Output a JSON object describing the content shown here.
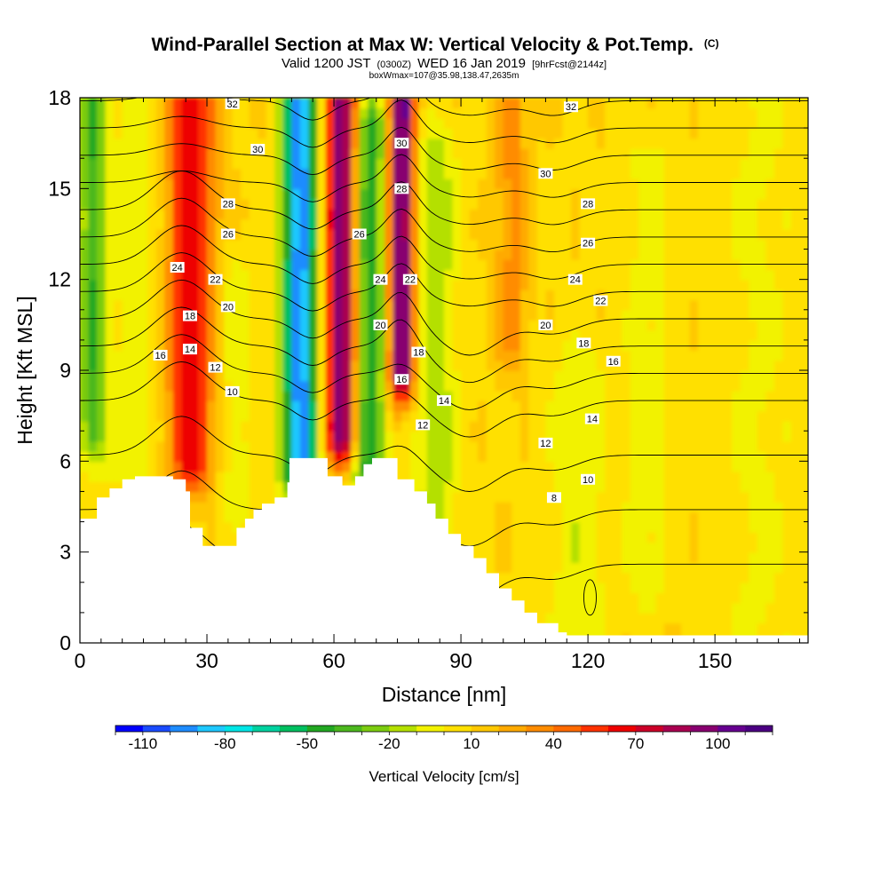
{
  "chart_data": {
    "type": "heatmap",
    "title": "Wind-Parallel Section at Max W: Vertical Velocity & Pot.Temp.",
    "title_suffix": "(C)",
    "subtitle_main": "Valid 1200 JST",
    "subtitle_utc": "(0300Z)",
    "subtitle_date": "WED 16 Jan 2019",
    "subtitle_fcst": "[9hrFcst@2144z]",
    "subtitle_box": "boxWmax=107@35.98,138.47,2635m",
    "xlabel": "Distance [nm]",
    "ylabel": "Height [Kft MSL]",
    "xlim": [
      0,
      172
    ],
    "ylim": [
      0,
      18
    ],
    "xticks": [
      0,
      30,
      60,
      90,
      120,
      150
    ],
    "yticks": [
      0,
      3,
      6,
      9,
      12,
      15,
      18
    ],
    "colorbar": {
      "title": "Vertical Velocity [cm/s]",
      "labels": [
        "-110",
        "-80",
        "-50",
        "-20",
        "10",
        "40",
        "70",
        "100"
      ],
      "label_values": [
        -110,
        -80,
        -50,
        -20,
        10,
        40,
        70,
        100
      ],
      "bounds": [
        -120,
        120
      ],
      "colors": [
        "#0000ff",
        "#1a4bff",
        "#1e8cff",
        "#1ec8ff",
        "#00e6e6",
        "#00d2a0",
        "#00c060",
        "#22a822",
        "#4cb81e",
        "#7ccc10",
        "#b4e000",
        "#f2f200",
        "#ffe000",
        "#ffc800",
        "#ffaa00",
        "#ff8c00",
        "#ff6a00",
        "#ff3200",
        "#ee0000",
        "#cc0028",
        "#aa0050",
        "#880070",
        "#660090",
        "#4b0082"
      ]
    },
    "w_features": [
      {
        "x": 3,
        "zmin": 7,
        "zmax": 18,
        "w": -45,
        "spread": 3
      },
      {
        "x": 26,
        "zmin": 6,
        "zmax": 18,
        "w": 60,
        "spread": 6
      },
      {
        "x": 14,
        "zmin": 6,
        "zmax": 18,
        "w": -15,
        "spread": 8
      },
      {
        "x": 36,
        "zmin": 5,
        "zmax": 12,
        "w": -15,
        "spread": 5
      },
      {
        "x": 52,
        "zmin": 6,
        "zmax": 18,
        "w": -105,
        "spread": 4
      },
      {
        "x": 62,
        "zmin": 7,
        "zmax": 18,
        "w": 95,
        "spread": 4
      },
      {
        "x": 68,
        "zmin": 6,
        "zmax": 17,
        "w": -60,
        "spread": 4
      },
      {
        "x": 76,
        "zmin": 9,
        "zmax": 18,
        "w": 100,
        "spread": 3
      },
      {
        "x": 84,
        "zmin": 3,
        "zmax": 16,
        "w": -25,
        "spread": 5
      },
      {
        "x": 102,
        "zmin": 10,
        "zmax": 18,
        "w": 25,
        "spread": 4
      },
      {
        "x": 118,
        "zmin": 0,
        "zmax": 9,
        "w": -15,
        "spread": 7
      },
      {
        "x": 134,
        "zmin": 2,
        "zmax": 16,
        "w": -12,
        "spread": 5
      },
      {
        "x": 160,
        "zmin": 0,
        "zmax": 18,
        "w": -10,
        "spread": 9
      }
    ],
    "potential_temperature_contours": [
      4,
      6,
      8,
      10,
      12,
      14,
      16,
      18,
      20,
      22,
      24,
      26,
      28,
      30,
      32
    ],
    "contour_labels": [
      {
        "x": 36,
        "z": 17.8,
        "text": "32"
      },
      {
        "x": 116,
        "z": 17.7,
        "text": "32"
      },
      {
        "x": 42,
        "z": 16.3,
        "text": "30"
      },
      {
        "x": 76,
        "z": 16.5,
        "text": "30"
      },
      {
        "x": 110,
        "z": 15.5,
        "text": "30"
      },
      {
        "x": 35,
        "z": 14.5,
        "text": "28"
      },
      {
        "x": 76,
        "z": 15.0,
        "text": "28"
      },
      {
        "x": 120,
        "z": 14.5,
        "text": "28"
      },
      {
        "x": 35,
        "z": 13.5,
        "text": "26"
      },
      {
        "x": 66,
        "z": 13.5,
        "text": "26"
      },
      {
        "x": 120,
        "z": 13.2,
        "text": "26"
      },
      {
        "x": 23,
        "z": 12.4,
        "text": "24"
      },
      {
        "x": 71,
        "z": 12.0,
        "text": "24"
      },
      {
        "x": 117,
        "z": 12.0,
        "text": "24"
      },
      {
        "x": 32,
        "z": 12.0,
        "text": "22"
      },
      {
        "x": 78,
        "z": 12.0,
        "text": "22"
      },
      {
        "x": 123,
        "z": 11.3,
        "text": "22"
      },
      {
        "x": 35,
        "z": 11.1,
        "text": "20"
      },
      {
        "x": 71,
        "z": 10.5,
        "text": "20"
      },
      {
        "x": 110,
        "z": 10.5,
        "text": "20"
      },
      {
        "x": 26,
        "z": 10.8,
        "text": "18"
      },
      {
        "x": 80,
        "z": 9.6,
        "text": "18"
      },
      {
        "x": 119,
        "z": 9.9,
        "text": "18"
      },
      {
        "x": 19,
        "z": 9.5,
        "text": "16"
      },
      {
        "x": 76,
        "z": 8.7,
        "text": "16"
      },
      {
        "x": 126,
        "z": 9.3,
        "text": "16"
      },
      {
        "x": 26,
        "z": 9.7,
        "text": "14"
      },
      {
        "x": 86,
        "z": 8.0,
        "text": "14"
      },
      {
        "x": 121,
        "z": 7.4,
        "text": "14"
      },
      {
        "x": 32,
        "z": 9.1,
        "text": "12"
      },
      {
        "x": 81,
        "z": 7.2,
        "text": "12"
      },
      {
        "x": 110,
        "z": 6.6,
        "text": "12"
      },
      {
        "x": 36,
        "z": 8.3,
        "text": "10"
      },
      {
        "x": 120,
        "z": 5.4,
        "text": "10"
      },
      {
        "x": 112,
        "z": 4.8,
        "text": "8"
      }
    ],
    "terrain": [
      [
        0,
        4.1
      ],
      [
        4,
        4.8
      ],
      [
        7,
        5.1
      ],
      [
        10,
        5.4
      ],
      [
        13,
        5.5
      ],
      [
        20,
        5.5
      ],
      [
        22,
        5.4
      ],
      [
        25,
        5.0
      ],
      [
        26,
        3.8
      ],
      [
        29,
        3.2
      ],
      [
        36,
        3.2
      ],
      [
        37,
        3.8
      ],
      [
        39,
        4.1
      ],
      [
        41,
        4.4
      ],
      [
        43,
        4.6
      ],
      [
        46,
        4.8
      ],
      [
        49,
        5.3
      ],
      [
        49.5,
        6.1
      ],
      [
        58,
        6.1
      ],
      [
        58.5,
        5.5
      ],
      [
        62,
        5.2
      ],
      [
        65,
        5.5
      ],
      [
        67,
        5.9
      ],
      [
        69,
        6.1
      ],
      [
        74,
        6.1
      ],
      [
        75,
        5.4
      ],
      [
        79,
        5.0
      ],
      [
        82,
        4.6
      ],
      [
        84,
        4.1
      ],
      [
        87,
        3.6
      ],
      [
        90,
        3.2
      ],
      [
        93,
        2.8
      ],
      [
        96,
        2.3
      ],
      [
        99,
        1.8
      ],
      [
        102,
        1.4
      ],
      [
        105,
        1.0
      ],
      [
        108,
        0.65
      ],
      [
        113,
        0.35
      ],
      [
        115,
        0.25
      ],
      [
        172,
        0.25
      ]
    ]
  }
}
